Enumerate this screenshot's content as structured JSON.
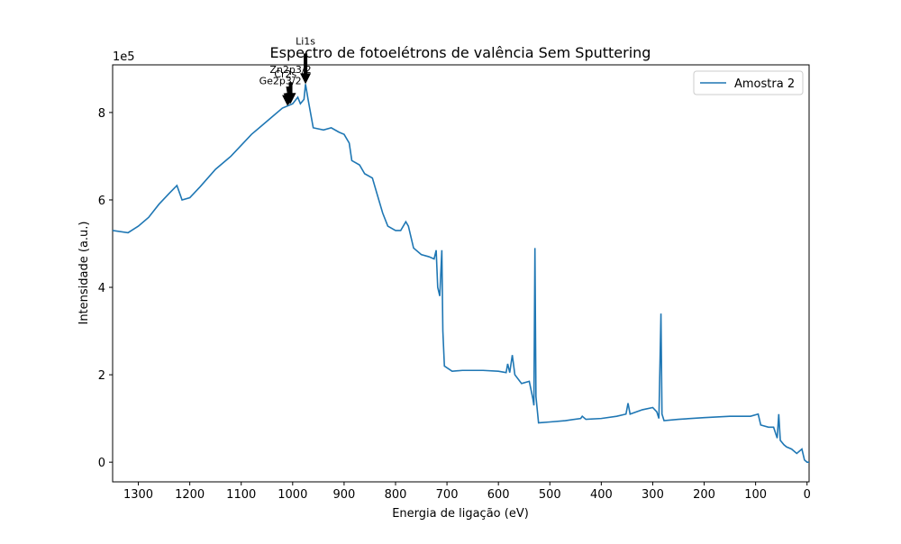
{
  "chart_data": {
    "type": "line",
    "title": "Espectro de fotoelétrons de valência Sem Sputtering",
    "xlabel": "Energia de ligação (eV)",
    "ylabel": "Intensidade (a.u.)",
    "y_offset_label": "1e5",
    "xlim": [
      1350,
      -4
    ],
    "ylim": [
      -45000,
      909000
    ],
    "xticks": [
      1300,
      1200,
      1100,
      1000,
      900,
      800,
      700,
      600,
      500,
      400,
      300,
      200,
      100,
      0
    ],
    "yticks": [
      {
        "value": 0,
        "label": "0"
      },
      {
        "value": 200000,
        "label": "2"
      },
      {
        "value": 400000,
        "label": "4"
      },
      {
        "value": 600000,
        "label": "6"
      },
      {
        "value": 800000,
        "label": "8"
      }
    ],
    "legend": "upper right",
    "annotations": [
      {
        "text": "Li1s",
        "x": 975,
        "y": 865000
      },
      {
        "text": "Zn2p3/2",
        "x": 1004,
        "y": 820000
      },
      {
        "text": "Cr2s",
        "x": 1007,
        "y": 818000
      },
      {
        "text": "Ge2p3/2",
        "x": 1010,
        "y": 815000
      }
    ],
    "x": [
      1350,
      1320,
      1300,
      1280,
      1260,
      1240,
      1225,
      1215,
      1200,
      1180,
      1150,
      1120,
      1100,
      1080,
      1060,
      1040,
      1020,
      1000,
      990,
      985,
      978,
      975,
      970,
      960,
      940,
      925,
      910,
      900,
      890,
      885,
      870,
      860,
      845,
      835,
      825,
      815,
      800,
      790,
      780,
      775,
      765,
      750,
      735,
      725,
      721,
      718,
      714,
      710,
      708,
      705,
      690,
      670,
      650,
      630,
      600,
      585,
      582,
      578,
      573,
      568,
      555,
      540,
      533,
      531,
      529,
      527,
      522,
      500,
      470,
      440,
      437,
      430,
      400,
      370,
      352,
      348,
      344,
      320,
      300,
      292,
      288,
      284,
      282,
      278,
      250,
      200,
      150,
      110,
      95,
      90,
      75,
      65,
      58,
      55,
      52,
      45,
      40,
      30,
      20,
      10,
      5,
      0,
      -4
    ],
    "series": [
      {
        "name": "Amostra 2",
        "color": "#1f77b4",
        "values": [
          530000,
          525000,
          540000,
          560000,
          590000,
          615000,
          633000,
          600000,
          605000,
          630000,
          670000,
          700000,
          725000,
          750000,
          770000,
          790000,
          810000,
          820000,
          835000,
          820000,
          830000,
          865000,
          830000,
          765000,
          760000,
          765000,
          755000,
          750000,
          730000,
          690000,
          680000,
          660000,
          650000,
          610000,
          570000,
          540000,
          530000,
          530000,
          550000,
          540000,
          490000,
          475000,
          470000,
          465000,
          485000,
          400000,
          380000,
          485000,
          300000,
          220000,
          208000,
          210000,
          210000,
          210000,
          208000,
          205000,
          225000,
          205000,
          245000,
          200000,
          180000,
          185000,
          145000,
          130000,
          490000,
          150000,
          90000,
          92000,
          95000,
          100000,
          105000,
          98000,
          100000,
          105000,
          110000,
          135000,
          110000,
          120000,
          125000,
          115000,
          100000,
          340000,
          110000,
          95000,
          98000,
          102000,
          105000,
          105000,
          110000,
          85000,
          80000,
          80000,
          55000,
          110000,
          50000,
          40000,
          35000,
          30000,
          20000,
          30000,
          5000,
          0,
          0
        ]
      }
    ]
  }
}
